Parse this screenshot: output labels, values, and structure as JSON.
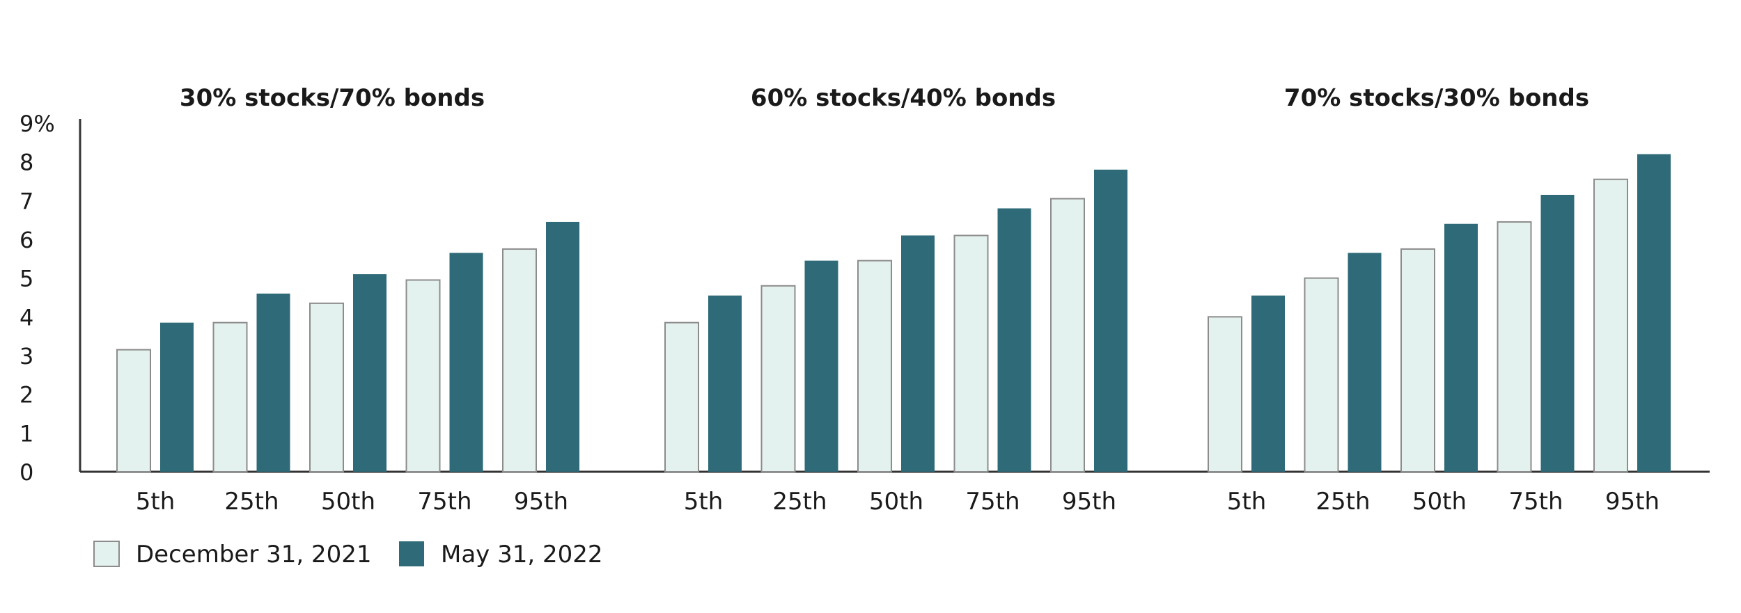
{
  "chart_data": {
    "type": "bar",
    "ylim": [
      0,
      9
    ],
    "yticks": [
      "0",
      "1",
      "2",
      "3",
      "4",
      "5",
      "6",
      "7",
      "8",
      "9%"
    ],
    "grid": false,
    "legend_position": "bottom-left",
    "categories": [
      "5th",
      "25th",
      "50th",
      "75th",
      "95th"
    ],
    "series_names": [
      "December 31, 2021",
      "May 31, 2022"
    ],
    "colors": {
      "december": "#e3f2ee",
      "may": "#2e6a77",
      "dec_stroke": "#8c8c8c",
      "axis": "#333333"
    },
    "panels": [
      {
        "title": "30% stocks/70% bonds",
        "series": [
          {
            "name": "December 31, 2021",
            "values": [
              3.15,
              3.85,
              4.35,
              4.95,
              5.75
            ]
          },
          {
            "name": "May 31, 2022",
            "values": [
              3.85,
              4.6,
              5.1,
              5.65,
              6.45
            ]
          }
        ]
      },
      {
        "title": "60% stocks/40% bonds",
        "series": [
          {
            "name": "December 31, 2021",
            "values": [
              3.85,
              4.8,
              5.45,
              6.1,
              7.05
            ]
          },
          {
            "name": "May 31, 2022",
            "values": [
              4.55,
              5.45,
              6.1,
              6.8,
              7.8
            ]
          }
        ]
      },
      {
        "title": "70% stocks/30% bonds",
        "series": [
          {
            "name": "December 31, 2021",
            "values": [
              4.0,
              5.0,
              5.75,
              6.45,
              7.55
            ]
          },
          {
            "name": "May 31, 2022",
            "values": [
              4.55,
              5.65,
              6.4,
              7.15,
              8.2
            ]
          }
        ]
      }
    ]
  }
}
